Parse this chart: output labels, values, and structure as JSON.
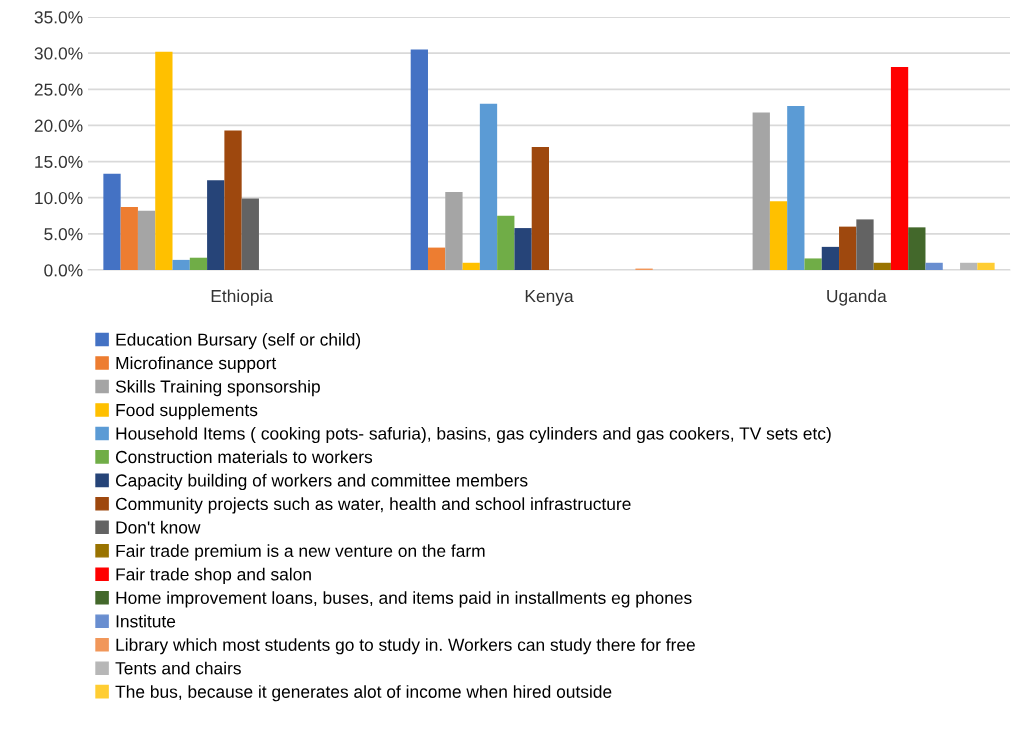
{
  "chart_data": {
    "type": "bar",
    "categories": [
      "Ethiopia",
      "Kenya",
      "Uganda"
    ],
    "ylim": [
      0,
      35
    ],
    "yticks": [
      {
        "value": 0,
        "label": "0.0%"
      },
      {
        "value": 5,
        "label": "5.0%"
      },
      {
        "value": 10,
        "label": "10.0%"
      },
      {
        "value": 15,
        "label": "15.0%"
      },
      {
        "value": 20,
        "label": "20.0%"
      },
      {
        "value": 25,
        "label": "25.0%"
      },
      {
        "value": 30,
        "label": "30.0%"
      },
      {
        "value": 35,
        "label": "35.0%"
      }
    ],
    "grid": "y",
    "legend": "bottom",
    "series": [
      {
        "name": "Education Bursary (self or child)",
        "color": "#4472c4",
        "values": [
          13.3,
          30.5,
          0
        ]
      },
      {
        "name": "Microfinance support",
        "color": "#ed7d31",
        "values": [
          8.7,
          3.1,
          0
        ]
      },
      {
        "name": "Skills Training sponsorship",
        "color": "#a5a5a5",
        "values": [
          8.2,
          10.8,
          21.8
        ]
      },
      {
        "name": "Food supplements",
        "color": "#ffc000",
        "values": [
          30.2,
          1.0,
          9.5
        ]
      },
      {
        "name": "Household Items ( cooking pots- safuria), basins, gas cylinders and gas cookers, TV sets etc)",
        "color": "#5b9bd5",
        "values": [
          1.4,
          23.0,
          22.7
        ]
      },
      {
        "name": "Construction materials to workers",
        "color": "#70ad47",
        "values": [
          1.7,
          7.5,
          1.6
        ]
      },
      {
        "name": "Capacity building of workers and committee members",
        "color": "#264478",
        "values": [
          12.4,
          5.8,
          3.2
        ]
      },
      {
        "name": "Community projects such as water, health and school infrastructure",
        "color": "#9e480e",
        "values": [
          19.3,
          17.0,
          6.0
        ]
      },
      {
        "name": "Don't know",
        "color": "#636363",
        "values": [
          9.9,
          0,
          7.0
        ]
      },
      {
        "name": "Fair trade premium is a new venture on the farm",
        "color": "#997300",
        "values": [
          0,
          0,
          1.0
        ]
      },
      {
        "name": "Fair trade shop and salon",
        "color": "#ff0000",
        "values": [
          0,
          0,
          28.1
        ]
      },
      {
        "name": "Home improvement loans, buses, and items paid in installments eg phones",
        "color": "#43682b",
        "values": [
          0,
          0,
          5.9
        ]
      },
      {
        "name": "Institute",
        "color": "#698ed0",
        "values": [
          0,
          0,
          1.0
        ]
      },
      {
        "name": "Library which most students go to study in. Workers can study there for free",
        "color": "#f1975a",
        "values": [
          0,
          0.2,
          0
        ]
      },
      {
        "name": "Tents and chairs",
        "color": "#b7b7b7",
        "values": [
          0,
          0,
          1.0
        ]
      },
      {
        "name": "The bus, because it generates alot of income when hired outside",
        "color": "#ffcd33",
        "values": [
          0,
          0,
          1.0
        ]
      }
    ]
  }
}
